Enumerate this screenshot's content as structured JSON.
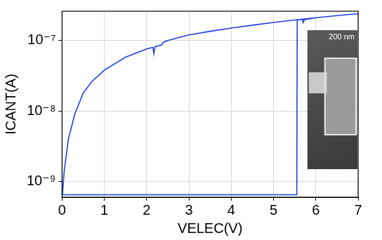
{
  "chart_data": {
    "type": "line",
    "x_label": "VELEC(V)",
    "y_label": "ICANT(A)",
    "log": "y",
    "grid": true,
    "xlim": [
      0,
      7
    ],
    "xticks": [
      0,
      1,
      2,
      3,
      4,
      5,
      6,
      7
    ],
    "ylim": [
      6e-10,
      2.6e-07
    ],
    "yticks": [
      {
        "value": 1e-09,
        "label": "10⁻⁹"
      },
      {
        "value": 1e-08,
        "label": "10⁻⁸"
      },
      {
        "value": 1e-07,
        "label": "10⁻⁷"
      }
    ],
    "annotations": [
      {
        "text": "200 nm"
      }
    ],
    "series": [
      {
        "name": "ICANT",
        "color": "#1f3fe0",
        "x": [
          0,
          1,
          2,
          3,
          4,
          5,
          5.55,
          5.56,
          5.68,
          5.7,
          5.73,
          6,
          6.5,
          7,
          6.5,
          6,
          5.5,
          5,
          4.5,
          4,
          3.5,
          3,
          2.5,
          2.4,
          2.35,
          2.2,
          2.17,
          2.15,
          2,
          1.5,
          1,
          0.7,
          0.5,
          0.3,
          0.15,
          0.05,
          0.02,
          0.01
        ],
        "values": [
          6.5e-10,
          6.5e-10,
          6.5e-10,
          6.5e-10,
          6.5e-10,
          6.5e-10,
          6.5e-10,
          1.95e-07,
          2e-07,
          1.8e-07,
          1.98e-07,
          2.1e-07,
          2.25e-07,
          2.4e-07,
          2.25e-07,
          2.1e-07,
          1.95e-07,
          1.8e-07,
          1.65e-07,
          1.5e-07,
          1.35e-07,
          1.2e-07,
          1e-07,
          9.5e-08,
          8.6e-08,
          8.2e-08,
          6.5e-08,
          8e-08,
          7.6e-08,
          5.8e-08,
          3.8e-08,
          2.6e-08,
          1.8e-08,
          9e-09,
          4e-09,
          1.4e-09,
          8e-10,
          6.5e-10
        ]
      }
    ]
  }
}
